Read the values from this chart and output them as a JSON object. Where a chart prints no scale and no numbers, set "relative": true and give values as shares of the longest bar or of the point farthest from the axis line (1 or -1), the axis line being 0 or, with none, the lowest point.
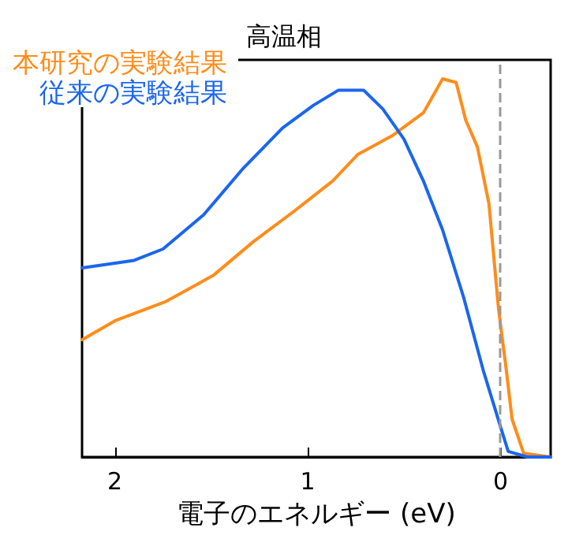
{
  "chart_data": {
    "type": "line",
    "title": "高温相",
    "xlabel": "電子のエネルギー (eV)",
    "relative": true,
    "xlim": [
      2.17,
      -0.26
    ],
    "xticks": [
      2,
      1,
      0
    ],
    "grid": false,
    "legend": "top left",
    "marker": "none",
    "line_style": "solid",
    "ref_lines": [
      {
        "axis": "x",
        "value": 0,
        "color": "#999999",
        "line_style": "dashed"
      }
    ],
    "series": [
      {
        "name": "本研究の実験結果",
        "color": "#ff8c1a",
        "x": [
          2.17,
          2.0,
          1.74,
          1.49,
          1.28,
          1.07,
          0.87,
          0.74,
          0.56,
          0.4,
          0.3,
          0.23,
          0.18,
          0.12,
          0.06,
          0.01,
          -0.03,
          -0.06,
          -0.12,
          -0.26
        ],
        "values": [
          0.31,
          0.36,
          0.41,
          0.48,
          0.57,
          0.65,
          0.73,
          0.8,
          0.85,
          0.91,
          1.0,
          0.99,
          0.89,
          0.82,
          0.67,
          0.39,
          0.23,
          0.1,
          0.01,
          0
        ]
      },
      {
        "name": "従来の実験結果",
        "color": "#1a66ee",
        "x": [
          2.17,
          1.9,
          1.75,
          1.54,
          1.34,
          1.13,
          0.97,
          0.84,
          0.71,
          0.61,
          0.5,
          0.4,
          0.3,
          0.19,
          0.09,
          0.0,
          -0.04,
          -0.14,
          -0.26
        ],
        "values": [
          0.5,
          0.52,
          0.55,
          0.64,
          0.76,
          0.87,
          0.93,
          0.97,
          0.97,
          0.92,
          0.84,
          0.73,
          0.6,
          0.42,
          0.23,
          0.08,
          0.015,
          0,
          0
        ]
      }
    ]
  }
}
